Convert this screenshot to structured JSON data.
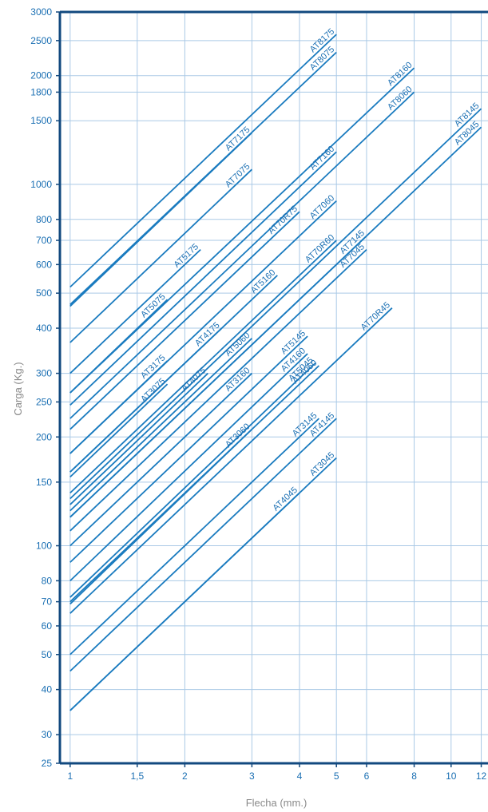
{
  "chart_data": {
    "type": "line",
    "xlabel": "Flecha (mm.)",
    "ylabel": "Carga (Kg.)",
    "x_scale": "log",
    "y_scale": "log",
    "xlim": [
      0.94,
      12.5
    ],
    "ylim": [
      25,
      3000
    ],
    "grid": true,
    "line_color": "#1a7bbf",
    "axis_color": "#12497f",
    "x_ticks": [
      {
        "v": 1,
        "label": "1"
      },
      {
        "v": 1.5,
        "label": "1,5"
      },
      {
        "v": 2,
        "label": "2"
      },
      {
        "v": 3,
        "label": "3"
      },
      {
        "v": 4,
        "label": "4"
      },
      {
        "v": 5,
        "label": "5"
      },
      {
        "v": 6,
        "label": "6"
      },
      {
        "v": 8,
        "label": "8"
      },
      {
        "v": 10,
        "label": "10"
      },
      {
        "v": 12,
        "label": "12"
      }
    ],
    "x_grid": [
      1,
      1.5,
      2,
      3,
      4,
      5,
      6,
      8,
      10,
      12
    ],
    "y_ticks": [
      {
        "v": 25,
        "label": "25"
      },
      {
        "v": 30,
        "label": "30"
      },
      {
        "v": 40,
        "label": "40"
      },
      {
        "v": 50,
        "label": "50"
      },
      {
        "v": 60,
        "label": "60"
      },
      {
        "v": 70,
        "label": "70"
      },
      {
        "v": 80,
        "label": "80"
      },
      {
        "v": 100,
        "label": "100"
      },
      {
        "v": 150,
        "label": "150"
      },
      {
        "v": 200,
        "label": "200"
      },
      {
        "v": 250,
        "label": "250"
      },
      {
        "v": 300,
        "label": "300"
      },
      {
        "v": 400,
        "label": "400"
      },
      {
        "v": 500,
        "label": "500"
      },
      {
        "v": 600,
        "label": "600"
      },
      {
        "v": 700,
        "label": "700"
      },
      {
        "v": 800,
        "label": "800"
      },
      {
        "v": 1000,
        "label": "1000"
      },
      {
        "v": 1500,
        "label": "1500"
      },
      {
        "v": 1800,
        "label": "1800"
      },
      {
        "v": 2000,
        "label": "2000"
      },
      {
        "v": 2500,
        "label": "2500"
      },
      {
        "v": 3000,
        "label": "3000"
      }
    ],
    "series": [
      {
        "name": "AT8175",
        "x": [
          1,
          5
        ],
        "y": [
          520,
          2600
        ]
      },
      {
        "name": "AT8075",
        "x": [
          1,
          5
        ],
        "y": [
          465,
          2320
        ]
      },
      {
        "name": "AT7175",
        "x": [
          1,
          3
        ],
        "y": [
          460,
          1390
        ]
      },
      {
        "name": "AT7075",
        "x": [
          1,
          3
        ],
        "y": [
          365,
          1100
        ]
      },
      {
        "name": "AT8160",
        "x": [
          1,
          8
        ],
        "y": [
          265,
          2100
        ]
      },
      {
        "name": "AT8060",
        "x": [
          1,
          8
        ],
        "y": [
          225,
          1800
        ]
      },
      {
        "name": "AT7160",
        "x": [
          1,
          5
        ],
        "y": [
          245,
          1230
        ]
      },
      {
        "name": "AT5175",
        "x": [
          1,
          2.2
        ],
        "y": [
          300,
          660
        ]
      },
      {
        "name": "AT8145",
        "x": [
          1,
          12
        ],
        "y": [
          135,
          1620
        ]
      },
      {
        "name": "AT8045",
        "x": [
          1,
          12
        ],
        "y": [
          120,
          1440
        ]
      },
      {
        "name": "AT70R75",
        "x": [
          1,
          4
        ],
        "y": [
          210,
          840
        ]
      },
      {
        "name": "AT7060",
        "x": [
          1,
          5
        ],
        "y": [
          180,
          900
        ]
      },
      {
        "name": "AT5075",
        "x": [
          1,
          1.8
        ],
        "y": [
          265,
          480
        ]
      },
      {
        "name": "AT5160",
        "x": [
          1,
          3.5
        ],
        "y": [
          160,
          560
        ]
      },
      {
        "name": "AT7145",
        "x": [
          1,
          6
        ],
        "y": [
          120,
          720
        ]
      },
      {
        "name": "AT7045",
        "x": [
          1,
          6
        ],
        "y": [
          110,
          660
        ]
      },
      {
        "name": "AT70R60",
        "x": [
          1,
          5
        ],
        "y": [
          140,
          700
        ]
      },
      {
        "name": "AT4175",
        "x": [
          1,
          2.5
        ],
        "y": [
          160,
          400
        ]
      },
      {
        "name": "AT3175",
        "x": [
          1,
          1.8
        ],
        "y": [
          180,
          325
        ]
      },
      {
        "name": "AT5060",
        "x": [
          1,
          3
        ],
        "y": [
          125,
          375
        ]
      },
      {
        "name": "AT4075",
        "x": [
          1,
          2.3
        ],
        "y": [
          130,
          300
        ]
      },
      {
        "name": "AT70R45",
        "x": [
          1,
          7
        ],
        "y": [
          65,
          455
        ]
      },
      {
        "name": "AT3075",
        "x": [
          1,
          1.8
        ],
        "y": [
          155,
          280
        ]
      },
      {
        "name": "AT5145",
        "x": [
          1,
          4.2
        ],
        "y": [
          90,
          380
        ]
      },
      {
        "name": "AT3160",
        "x": [
          1,
          3
        ],
        "y": [
          100,
          300
        ]
      },
      {
        "name": "AT4160",
        "x": [
          1,
          4.2
        ],
        "y": [
          80,
          340
        ]
      },
      {
        "name": "AT5045",
        "x": [
          1,
          4.4
        ],
        "y": [
          72,
          320
        ]
      },
      {
        "name": "AT4060",
        "x": [
          1,
          4.5
        ],
        "y": [
          70,
          315
        ]
      },
      {
        "name": "AT3060",
        "x": [
          1,
          3
        ],
        "y": [
          69,
          210
        ]
      },
      {
        "name": "AT3145",
        "x": [
          1,
          4.5
        ],
        "y": [
          50,
          225
        ]
      },
      {
        "name": "AT4145",
        "x": [
          1,
          5
        ],
        "y": [
          45,
          225
        ]
      },
      {
        "name": "AT4045",
        "x": [
          1,
          4
        ],
        "y": [
          35,
          140
        ]
      },
      {
        "name": "AT3045",
        "x": [
          1,
          5
        ],
        "y": [
          35,
          175
        ]
      }
    ]
  }
}
